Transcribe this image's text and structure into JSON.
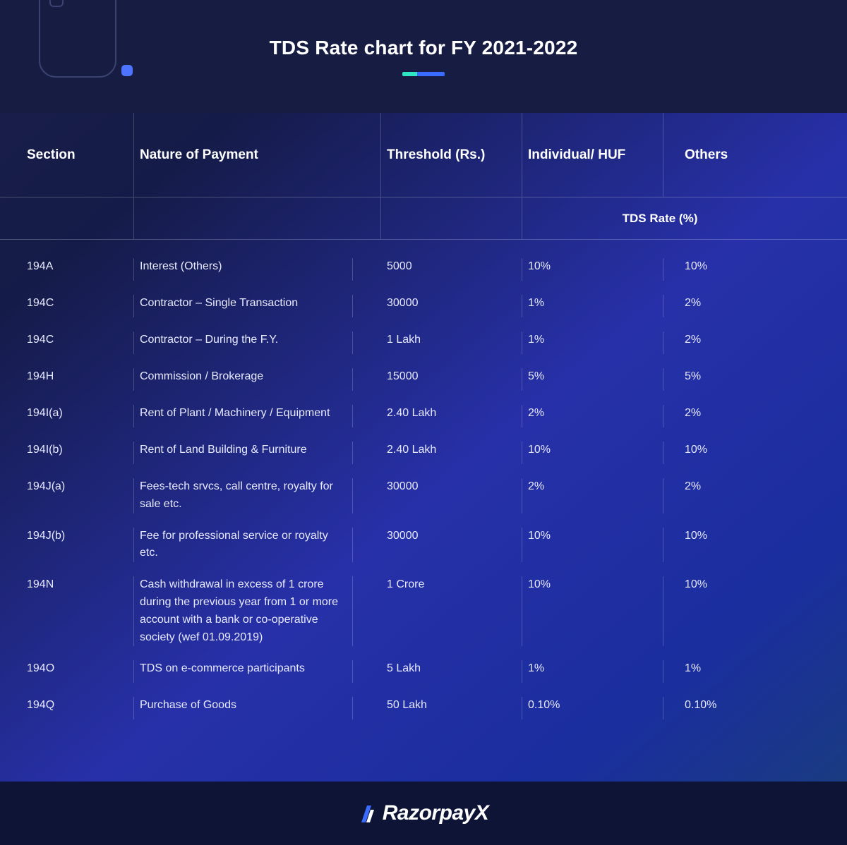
{
  "title": "TDS Rate chart for FY 2021-2022",
  "columns": {
    "section": "Section",
    "nature": "Nature of Payment",
    "threshold": "Threshold (Rs.)",
    "individual": "Individual/ HUF",
    "others": "Others"
  },
  "subheader": "TDS Rate (%)",
  "rows": [
    {
      "section": "194A",
      "nature": "Interest (Others)",
      "threshold": "5000",
      "individual": "10%",
      "others": "10%"
    },
    {
      "section": "194C",
      "nature": "Contractor – Single Transaction",
      "threshold": "30000",
      "individual": "1%",
      "others": "2%"
    },
    {
      "section": "194C",
      "nature": "Contractor – During the F.Y.",
      "threshold": "1 Lakh",
      "individual": "1%",
      "others": "2%"
    },
    {
      "section": "194H",
      "nature": "Commission / Brokerage",
      "threshold": "15000",
      "individual": "5%",
      "others": "5%"
    },
    {
      "section": "194I(a)",
      "nature": "Rent of Plant / Machinery / Equipment",
      "threshold": "2.40 Lakh",
      "individual": "2%",
      "others": "2%"
    },
    {
      "section": "194I(b)",
      "nature": "Rent of Land Building & Furniture",
      "threshold": "2.40 Lakh",
      "individual": "10%",
      "others": "10%"
    },
    {
      "section": "194J(a)",
      "nature": "Fees-tech srvcs, call centre, royalty for sale etc.",
      "threshold": "30000",
      "individual": "2%",
      "others": "2%"
    },
    {
      "section": "194J(b)",
      "nature": "Fee for professional service or royalty etc.",
      "threshold": "30000",
      "individual": "10%",
      "others": "10%"
    },
    {
      "section": "194N",
      "nature": "Cash withdrawal in excess of 1 crore during the previous year from 1 or more account with a bank or co-operative society (wef 01.09.2019)",
      "threshold": "1 Crore",
      "individual": "10%",
      "others": "10%"
    },
    {
      "section": "194O",
      "nature": "TDS on e-commerce participants",
      "threshold": "5 Lakh",
      "individual": "1%",
      "others": "1%"
    },
    {
      "section": "194Q",
      "nature": "Purchase of Goods",
      "threshold": "50 Lakh",
      "individual": "0.10%",
      "others": "0.10%"
    }
  ],
  "brand": {
    "name": "Razorpay",
    "suffix": "X"
  },
  "colors": {
    "header_bg": "#161c42",
    "footer_bg": "#0e1436",
    "accent_teal": "#2fe6c3",
    "accent_blue": "#3a6cff",
    "divider": "rgba(255,255,255,0.22)"
  }
}
